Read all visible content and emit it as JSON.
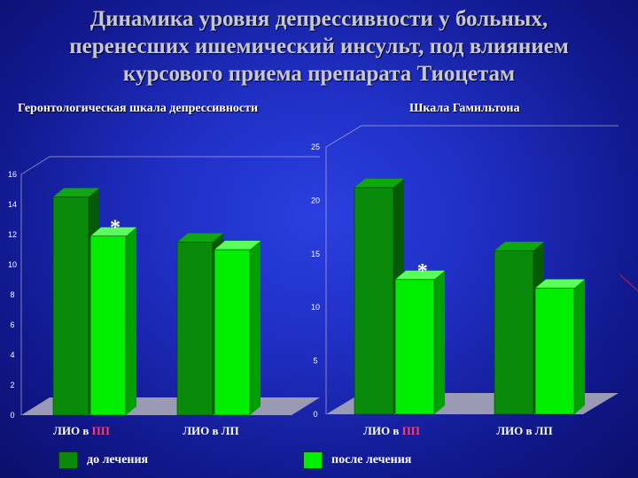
{
  "title_lines": [
    "Динамика уровня депрессивности у больных,",
    "перенесших ишемический инсульт, под влиянием",
    "курсового приема препарата Тиоцетам"
  ],
  "legend": [
    {
      "label": "до лечения",
      "color": "#0a8a0a"
    },
    {
      "label": "после лечения",
      "color": "#00ee00"
    }
  ],
  "chart_data": [
    {
      "type": "bar",
      "title": "Геронтологическая шкала депрессивности",
      "categories": [
        "ЛИО в ПП",
        "ЛИО в ЛП"
      ],
      "series": [
        {
          "name": "до лечения",
          "values": [
            14.5,
            11.5
          ]
        },
        {
          "name": "после лечения",
          "values": [
            11.9,
            11.0
          ]
        }
      ],
      "ylim": [
        0,
        16
      ],
      "yticks": [
        "0",
        "2",
        "4",
        "6",
        "8",
        "10",
        "12",
        "14",
        "16"
      ],
      "annotations": [
        {
          "text": "*",
          "category": "ЛИО в ПП",
          "series": "после лечения"
        }
      ],
      "xlabel": "",
      "ylabel": ""
    },
    {
      "type": "bar",
      "title": "Шкала Гамильтона",
      "categories": [
        "ЛИО в ПП",
        "ЛИО в ЛП"
      ],
      "series": [
        {
          "name": "до лечения",
          "values": [
            21.2,
            15.3
          ]
        },
        {
          "name": "после лечения",
          "values": [
            12.6,
            11.8
          ]
        }
      ],
      "ylim": [
        0,
        25
      ],
      "yticks": [
        "0",
        "5",
        "10",
        "15",
        "20",
        "25"
      ],
      "annotations": [
        {
          "text": "*",
          "category": "ЛИО в ПП",
          "series": "после лечения"
        }
      ],
      "xlabel": "",
      "ylabel": ""
    }
  ],
  "colors": {
    "bar_front_before": "#0a8a0a",
    "bar_side_before": "#055a05",
    "bar_top_before": "#0fa60f",
    "bar_front_after": "#00ee00",
    "bar_side_after": "#00a000",
    "bar_top_after": "#5aff5a",
    "floor": "#9a9ab4",
    "wall_line": "#c8c8d8",
    "tick_text": "#ffffff",
    "category_text": "#ffffff",
    "category_highlight": "#ff3b6a"
  }
}
